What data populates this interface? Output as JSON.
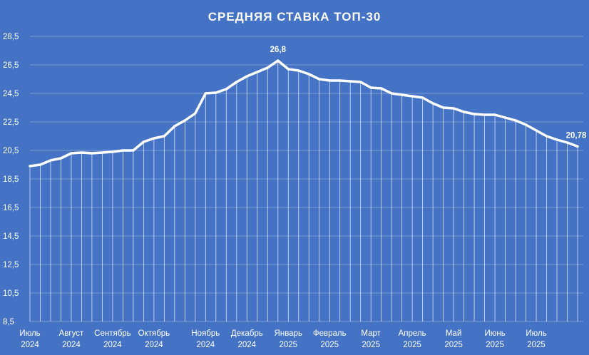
{
  "chart_data": {
    "type": "line",
    "title": "СРЕДНЯЯ СТАВКА ТОП-30",
    "xlabel": "",
    "ylabel": "",
    "ylim": [
      8.5,
      28.5
    ],
    "yticks": [
      "8,5",
      "10,5",
      "12,5",
      "14,5",
      "16,5",
      "18,5",
      "20,5",
      "22,5",
      "24,5",
      "26,5",
      "28,5"
    ],
    "grid": true,
    "drop_lines": true,
    "month_labels": [
      {
        "month": "Июль",
        "year": "2024",
        "index": 0
      },
      {
        "month": "Август",
        "year": "2024",
        "index": 4
      },
      {
        "month": "Сентябрь",
        "year": "2024",
        "index": 8
      },
      {
        "month": "Октябрь",
        "year": "2024",
        "index": 12
      },
      {
        "month": "Ноябрь",
        "year": "2024",
        "index": 17
      },
      {
        "month": "Декабрь",
        "year": "2024",
        "index": 21
      },
      {
        "month": "Январь",
        "year": "2025",
        "index": 25
      },
      {
        "month": "Февраль",
        "year": "2025",
        "index": 29
      },
      {
        "month": "Март",
        "year": "2025",
        "index": 33
      },
      {
        "month": "Апрель",
        "year": "2025",
        "index": 37
      },
      {
        "month": "Май",
        "year": "2025",
        "index": 41
      },
      {
        "month": "Июнь",
        "year": "2025",
        "index": 45
      },
      {
        "month": "Июль",
        "year": "2025",
        "index": 49
      }
    ],
    "series": [
      {
        "values": [
          19.4,
          19.5,
          19.8,
          19.95,
          20.3,
          20.35,
          20.3,
          20.35,
          20.4,
          20.5,
          20.5,
          21.1,
          21.35,
          21.5,
          22.2,
          22.6,
          23.1,
          24.5,
          24.55,
          24.8,
          25.3,
          25.7,
          26.0,
          26.3,
          26.8,
          26.2,
          26.1,
          25.85,
          25.5,
          25.4,
          25.4,
          25.35,
          25.3,
          24.9,
          24.85,
          24.5,
          24.4,
          24.3,
          24.2,
          23.8,
          23.5,
          23.45,
          23.2,
          23.05,
          23.0,
          23.0,
          22.8,
          22.6,
          22.3,
          21.9,
          21.5,
          21.25,
          21.05,
          20.78
        ],
        "annotations": [
          {
            "index": 24,
            "label": "26,8"
          },
          {
            "index": 53,
            "label": "20,78"
          }
        ]
      }
    ]
  }
}
